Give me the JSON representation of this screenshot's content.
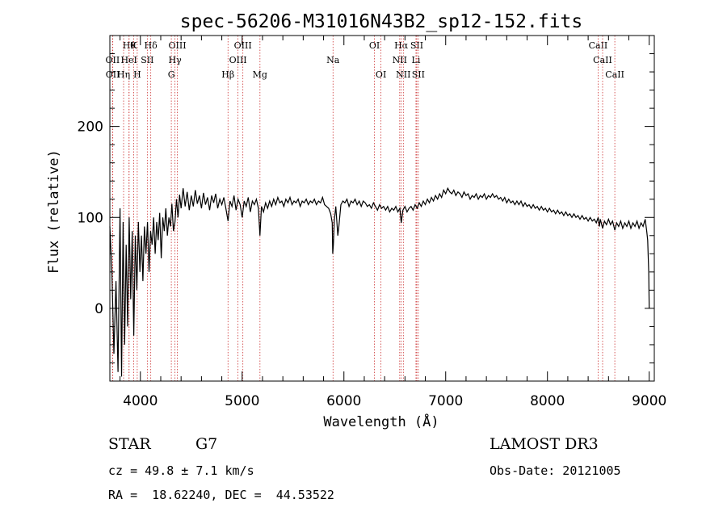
{
  "chart_data": {
    "type": "line",
    "title": "spec-56206-M31016N43B2_sp12-152.fits",
    "xlabel": "Wavelength (Å)",
    "ylabel": "Flux (relative)",
    "xlim": [
      3700,
      9050
    ],
    "ylim": [
      -80,
      300
    ],
    "xticks": [
      4000,
      5000,
      6000,
      7000,
      8000,
      9000
    ],
    "yticks": [
      0,
      100,
      200
    ],
    "spectrum": [
      [
        3700,
        90
      ],
      [
        3720,
        40
      ],
      [
        3740,
        -50
      ],
      [
        3760,
        30
      ],
      [
        3780,
        -70
      ],
      [
        3800,
        110
      ],
      [
        3815,
        -75
      ],
      [
        3830,
        95
      ],
      [
        3845,
        -40
      ],
      [
        3860,
        70
      ],
      [
        3875,
        -20
      ],
      [
        3890,
        100
      ],
      [
        3905,
        10
      ],
      [
        3920,
        85
      ],
      [
        3935,
        -30
      ],
      [
        3950,
        80
      ],
      [
        3965,
        20
      ],
      [
        3980,
        95
      ],
      [
        3995,
        40
      ],
      [
        4010,
        80
      ],
      [
        4025,
        30
      ],
      [
        4040,
        90
      ],
      [
        4055,
        60
      ],
      [
        4070,
        95
      ],
      [
        4085,
        40
      ],
      [
        4100,
        85
      ],
      [
        4115,
        70
      ],
      [
        4130,
        100
      ],
      [
        4145,
        60
      ],
      [
        4160,
        95
      ],
      [
        4175,
        75
      ],
      [
        4190,
        105
      ],
      [
        4205,
        55
      ],
      [
        4220,
        100
      ],
      [
        4235,
        85
      ],
      [
        4250,
        110
      ],
      [
        4265,
        80
      ],
      [
        4280,
        100
      ],
      [
        4295,
        90
      ],
      [
        4310,
        115
      ],
      [
        4325,
        85
      ],
      [
        4340,
        95
      ],
      [
        4355,
        120
      ],
      [
        4370,
        100
      ],
      [
        4385,
        125
      ],
      [
        4400,
        110
      ],
      [
        4420,
        132
      ],
      [
        4440,
        112
      ],
      [
        4460,
        128
      ],
      [
        4480,
        108
      ],
      [
        4500,
        124
      ],
      [
        4520,
        112
      ],
      [
        4540,
        130
      ],
      [
        4560,
        115
      ],
      [
        4580,
        124
      ],
      [
        4600,
        110
      ],
      [
        4620,
        127
      ],
      [
        4640,
        114
      ],
      [
        4660,
        122
      ],
      [
        4680,
        108
      ],
      [
        4700,
        124
      ],
      [
        4720,
        116
      ],
      [
        4740,
        126
      ],
      [
        4760,
        110
      ],
      [
        4780,
        120
      ],
      [
        4800,
        114
      ],
      [
        4820,
        122
      ],
      [
        4840,
        110
      ],
      [
        4861,
        96
      ],
      [
        4880,
        118
      ],
      [
        4900,
        112
      ],
      [
        4920,
        124
      ],
      [
        4940,
        108
      ],
      [
        4960,
        120
      ],
      [
        4980,
        114
      ],
      [
        5000,
        100
      ],
      [
        5020,
        118
      ],
      [
        5040,
        112
      ],
      [
        5060,
        122
      ],
      [
        5080,
        106
      ],
      [
        5100,
        118
      ],
      [
        5120,
        114
      ],
      [
        5140,
        120
      ],
      [
        5160,
        110
      ],
      [
        5175,
        80
      ],
      [
        5190,
        112
      ],
      [
        5210,
        106
      ],
      [
        5230,
        116
      ],
      [
        5250,
        110
      ],
      [
        5270,
        118
      ],
      [
        5290,
        112
      ],
      [
        5310,
        120
      ],
      [
        5330,
        114
      ],
      [
        5350,
        122
      ],
      [
        5370,
        116
      ],
      [
        5390,
        118
      ],
      [
        5410,
        112
      ],
      [
        5430,
        120
      ],
      [
        5450,
        116
      ],
      [
        5470,
        122
      ],
      [
        5490,
        114
      ],
      [
        5510,
        118
      ],
      [
        5530,
        116
      ],
      [
        5550,
        120
      ],
      [
        5570,
        112
      ],
      [
        5590,
        118
      ],
      [
        5610,
        116
      ],
      [
        5630,
        120
      ],
      [
        5650,
        114
      ],
      [
        5670,
        118
      ],
      [
        5690,
        116
      ],
      [
        5710,
        120
      ],
      [
        5730,
        114
      ],
      [
        5750,
        118
      ],
      [
        5770,
        116
      ],
      [
        5790,
        122
      ],
      [
        5810,
        114
      ],
      [
        5830,
        112
      ],
      [
        5850,
        110
      ],
      [
        5870,
        104
      ],
      [
        5885,
        94
      ],
      [
        5890,
        60
      ],
      [
        5896,
        70
      ],
      [
        5905,
        96
      ],
      [
        5920,
        112
      ],
      [
        5940,
        80
      ],
      [
        5950,
        90
      ],
      [
        5970,
        114
      ],
      [
        5990,
        118
      ],
      [
        6010,
        116
      ],
      [
        6030,
        120
      ],
      [
        6050,
        112
      ],
      [
        6070,
        118
      ],
      [
        6090,
        116
      ],
      [
        6110,
        120
      ],
      [
        6130,
        114
      ],
      [
        6150,
        118
      ],
      [
        6170,
        112
      ],
      [
        6190,
        118
      ],
      [
        6210,
        116
      ],
      [
        6230,
        112
      ],
      [
        6250,
        114
      ],
      [
        6270,
        110
      ],
      [
        6290,
        116
      ],
      [
        6310,
        112
      ],
      [
        6330,
        108
      ],
      [
        6350,
        114
      ],
      [
        6370,
        110
      ],
      [
        6390,
        112
      ],
      [
        6410,
        108
      ],
      [
        6430,
        112
      ],
      [
        6450,
        106
      ],
      [
        6470,
        110
      ],
      [
        6490,
        108
      ],
      [
        6510,
        112
      ],
      [
        6530,
        106
      ],
      [
        6550,
        110
      ],
      [
        6563,
        94
      ],
      [
        6580,
        108
      ],
      [
        6600,
        112
      ],
      [
        6620,
        106
      ],
      [
        6640,
        110
      ],
      [
        6660,
        112
      ],
      [
        6680,
        108
      ],
      [
        6700,
        114
      ],
      [
        6720,
        110
      ],
      [
        6740,
        116
      ],
      [
        6760,
        112
      ],
      [
        6780,
        118
      ],
      [
        6800,
        114
      ],
      [
        6820,
        120
      ],
      [
        6840,
        116
      ],
      [
        6860,
        122
      ],
      [
        6880,
        118
      ],
      [
        6900,
        124
      ],
      [
        6920,
        120
      ],
      [
        6940,
        126
      ],
      [
        6960,
        122
      ],
      [
        6980,
        130
      ],
      [
        7000,
        126
      ],
      [
        7020,
        132
      ],
      [
        7040,
        128
      ],
      [
        7060,
        126
      ],
      [
        7080,
        130
      ],
      [
        7100,
        124
      ],
      [
        7120,
        128
      ],
      [
        7140,
        126
      ],
      [
        7160,
        122
      ],
      [
        7180,
        128
      ],
      [
        7200,
        124
      ],
      [
        7220,
        126
      ],
      [
        7240,
        120
      ],
      [
        7260,
        124
      ],
      [
        7280,
        122
      ],
      [
        7300,
        126
      ],
      [
        7320,
        120
      ],
      [
        7340,
        124
      ],
      [
        7360,
        122
      ],
      [
        7380,
        126
      ],
      [
        7400,
        120
      ],
      [
        7420,
        124
      ],
      [
        7440,
        122
      ],
      [
        7460,
        126
      ],
      [
        7480,
        122
      ],
      [
        7500,
        124
      ],
      [
        7520,
        120
      ],
      [
        7540,
        122
      ],
      [
        7560,
        118
      ],
      [
        7580,
        122
      ],
      [
        7600,
        116
      ],
      [
        7620,
        120
      ],
      [
        7640,
        116
      ],
      [
        7660,
        118
      ],
      [
        7680,
        114
      ],
      [
        7700,
        118
      ],
      [
        7720,
        114
      ],
      [
        7740,
        118
      ],
      [
        7760,
        112
      ],
      [
        7780,
        116
      ],
      [
        7800,
        112
      ],
      [
        7820,
        114
      ],
      [
        7840,
        110
      ],
      [
        7860,
        114
      ],
      [
        7880,
        110
      ],
      [
        7900,
        112
      ],
      [
        7920,
        108
      ],
      [
        7940,
        112
      ],
      [
        7960,
        108
      ],
      [
        7980,
        110
      ],
      [
        8000,
        106
      ],
      [
        8020,
        110
      ],
      [
        8040,
        106
      ],
      [
        8060,
        108
      ],
      [
        8080,
        104
      ],
      [
        8100,
        108
      ],
      [
        8120,
        104
      ],
      [
        8140,
        106
      ],
      [
        8160,
        102
      ],
      [
        8180,
        106
      ],
      [
        8200,
        102
      ],
      [
        8220,
        104
      ],
      [
        8240,
        100
      ],
      [
        8260,
        104
      ],
      [
        8280,
        100
      ],
      [
        8300,
        102
      ],
      [
        8320,
        98
      ],
      [
        8340,
        102
      ],
      [
        8360,
        98
      ],
      [
        8380,
        100
      ],
      [
        8400,
        96
      ],
      [
        8420,
        100
      ],
      [
        8440,
        96
      ],
      [
        8460,
        98
      ],
      [
        8480,
        94
      ],
      [
        8498,
        100
      ],
      [
        8510,
        90
      ],
      [
        8520,
        98
      ],
      [
        8542,
        88
      ],
      [
        8560,
        96
      ],
      [
        8580,
        92
      ],
      [
        8600,
        98
      ],
      [
        8620,
        92
      ],
      [
        8640,
        96
      ],
      [
        8662,
        86
      ],
      [
        8680,
        94
      ],
      [
        8700,
        90
      ],
      [
        8720,
        96
      ],
      [
        8740,
        88
      ],
      [
        8760,
        94
      ],
      [
        8780,
        90
      ],
      [
        8800,
        96
      ],
      [
        8820,
        88
      ],
      [
        8840,
        94
      ],
      [
        8860,
        90
      ],
      [
        8880,
        96
      ],
      [
        8900,
        88
      ],
      [
        8920,
        94
      ],
      [
        8940,
        90
      ],
      [
        8960,
        98
      ],
      [
        8975,
        85
      ],
      [
        8985,
        75
      ],
      [
        8995,
        40
      ],
      [
        9000,
        0
      ]
    ],
    "line_markers": [
      {
        "wl": 3889,
        "label": "Hθ",
        "row": 0
      },
      {
        "wl": 3934,
        "label": "K",
        "row": 0
      },
      {
        "wl": 4102,
        "label": "Hδ",
        "row": 0
      },
      {
        "wl": 4363,
        "label": "OIII",
        "row": 0
      },
      {
        "wl": 5007,
        "label": "OIII",
        "row": 0
      },
      {
        "wl": 6300,
        "label": "OI",
        "row": 0
      },
      {
        "wl": 6563,
        "label": "Hα",
        "row": 0
      },
      {
        "wl": 6716,
        "label": "SII",
        "row": 0
      },
      {
        "wl": 8498,
        "label": "CaII",
        "row": 0
      },
      {
        "wl": 3727,
        "label": "OII",
        "row": 1
      },
      {
        "wl": 3888,
        "label": "HeI",
        "row": 1
      },
      {
        "wl": 4068,
        "label": "SII",
        "row": 1
      },
      {
        "wl": 4340,
        "label": "Hγ",
        "row": 1
      },
      {
        "wl": 4959,
        "label": "OIII",
        "row": 1
      },
      {
        "wl": 5893,
        "label": "Na",
        "row": 1
      },
      {
        "wl": 6548,
        "label": "NII",
        "row": 1
      },
      {
        "wl": 6708,
        "label": "Li",
        "row": 1
      },
      {
        "wl": 8542,
        "label": "CaII",
        "row": 1
      },
      {
        "wl": 3729,
        "label": "OII",
        "row": 2
      },
      {
        "wl": 3835,
        "label": "Hη",
        "row": 2
      },
      {
        "wl": 3969,
        "label": "H",
        "row": 2
      },
      {
        "wl": 4304,
        "label": "G",
        "row": 2
      },
      {
        "wl": 4861,
        "label": "Hβ",
        "row": 2
      },
      {
        "wl": 5175,
        "label": "Mg",
        "row": 2
      },
      {
        "wl": 6364,
        "label": "OI",
        "row": 2
      },
      {
        "wl": 6584,
        "label": "NII",
        "row": 2
      },
      {
        "wl": 6731,
        "label": "SII",
        "row": 2
      },
      {
        "wl": 8662,
        "label": "CaII",
        "row": 2
      }
    ]
  },
  "info": {
    "class": "STAR",
    "subclass": "G7",
    "redshift": "cz = 49.8 ± 7.1 km/s",
    "coords": "RA =  18.62240, DEC =  44.53522",
    "survey": "LAMOST DR3",
    "obs_date": "Obs-Date: 20121005"
  },
  "colors": {
    "marker": "#cc3333",
    "spectrum": "#000000"
  }
}
